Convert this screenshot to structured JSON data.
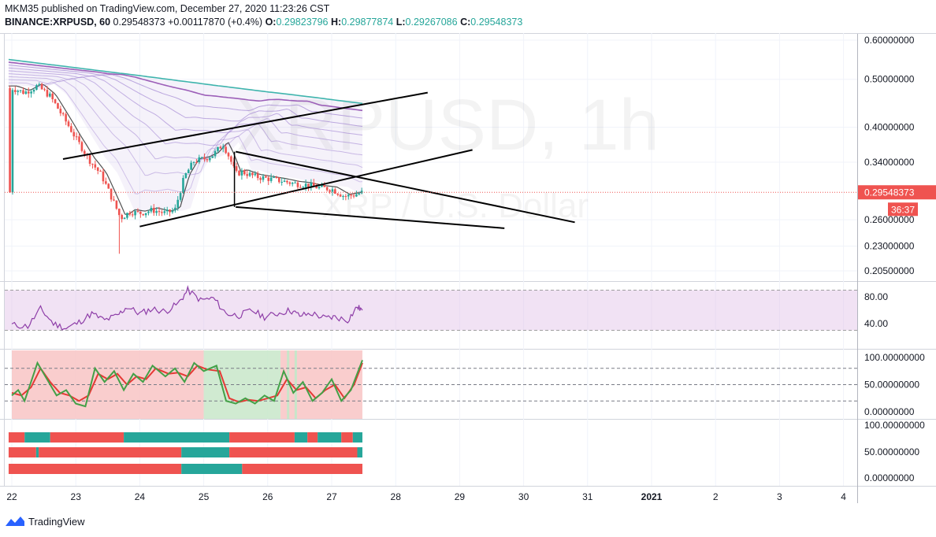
{
  "header": {
    "published": "MKM35 published on TradingView.com, December 27, 2020 11:23:26 CST",
    "symbol": "BINANCE:XRPUSD, 60",
    "last": "0.29548373",
    "change": "+0.00117870 (+0.4%)",
    "o_label": "O:",
    "o": "0.29823796",
    "h_label": "H:",
    "h": "0.29877874",
    "l_label": "L:",
    "l": "0.29267086",
    "c_label": "C:",
    "c": "0.29548373"
  },
  "watermark": {
    "line1": "XRPUSD, 1h",
    "line2": "XRP / U.S. Dollar"
  },
  "footer": {
    "brand": "TradingView"
  },
  "colors": {
    "up": "#26a69a",
    "down": "#ef5350",
    "ma_teal": "#3fb4ad",
    "ma_purple": "#9c5fb8",
    "rsi": "#8e3ea8",
    "stoch_k": "#43a047",
    "stoch_d": "#e53935",
    "trend": "#000000"
  },
  "chart_data": [
    {
      "type": "candlestick",
      "name": "price",
      "x_ticks": [
        "22",
        "23",
        "24",
        "25",
        "26",
        "27",
        "28",
        "29",
        "30",
        "31",
        "2021",
        "2",
        "3",
        "4"
      ],
      "y_ticks": [
        "0.60000000",
        "0.50000000",
        "0.40000000",
        "0.34000000",
        "0.29548373",
        "0.26000000",
        "0.23000000",
        "0.20500000"
      ],
      "y_scale": "log",
      "ylim": [
        0.19,
        0.64
      ],
      "last_price": "0.29548373",
      "countdown": "36:37",
      "close_path": [
        [
          22.0,
          0.48
        ],
        [
          22.2,
          0.47
        ],
        [
          22.4,
          0.485
        ],
        [
          22.6,
          0.462
        ],
        [
          22.8,
          0.42
        ],
        [
          23.0,
          0.38
        ],
        [
          23.2,
          0.345
        ],
        [
          23.4,
          0.32
        ],
        [
          23.55,
          0.29
        ],
        [
          23.7,
          0.262
        ],
        [
          23.85,
          0.27
        ],
        [
          24.0,
          0.268
        ],
        [
          24.2,
          0.272
        ],
        [
          24.4,
          0.268
        ],
        [
          24.55,
          0.272
        ],
        [
          24.7,
          0.318
        ],
        [
          24.85,
          0.342
        ],
        [
          25.0,
          0.345
        ],
        [
          25.15,
          0.352
        ],
        [
          25.3,
          0.37
        ],
        [
          25.4,
          0.348
        ],
        [
          25.5,
          0.322
        ],
        [
          25.6,
          0.325
        ],
        [
          25.8,
          0.318
        ],
        [
          26.0,
          0.315
        ],
        [
          26.2,
          0.312
        ],
        [
          26.4,
          0.308
        ],
        [
          26.6,
          0.306
        ],
        [
          26.8,
          0.302
        ],
        [
          27.0,
          0.3
        ],
        [
          27.2,
          0.29
        ],
        [
          27.35,
          0.292
        ],
        [
          27.48,
          0.2955
        ]
      ],
      "trend_lines": [
        [
          [
            22.8,
            0.345
          ],
          [
            28.5,
            0.47
          ]
        ],
        [
          [
            24.0,
            0.252
          ],
          [
            29.2,
            0.36
          ]
        ],
        [
          [
            25.5,
            0.357
          ],
          [
            30.8,
            0.257
          ]
        ],
        [
          [
            25.5,
            0.276
          ],
          [
            29.7,
            0.25
          ]
        ]
      ]
    },
    {
      "type": "line",
      "name": "rsi",
      "y_ticks": [
        "80.00",
        "40.00"
      ],
      "ylim": [
        20,
        100
      ],
      "band": [
        30,
        90
      ],
      "values": [
        [
          22.0,
          38
        ],
        [
          22.25,
          36
        ],
        [
          22.45,
          62
        ],
        [
          22.65,
          40
        ],
        [
          22.85,
          33
        ],
        [
          23.05,
          42
        ],
        [
          23.25,
          55
        ],
        [
          23.45,
          45
        ],
        [
          23.65,
          52
        ],
        [
          23.8,
          65
        ],
        [
          24.0,
          55
        ],
        [
          24.2,
          62
        ],
        [
          24.4,
          58
        ],
        [
          24.6,
          70
        ],
        [
          24.75,
          90
        ],
        [
          24.95,
          75
        ],
        [
          25.15,
          78
        ],
        [
          25.35,
          55
        ],
        [
          25.55,
          52
        ],
        [
          25.75,
          60
        ],
        [
          25.95,
          50
        ],
        [
          26.15,
          55
        ],
        [
          26.35,
          60
        ],
        [
          26.5,
          52
        ],
        [
          26.7,
          55
        ],
        [
          26.9,
          48
        ],
        [
          27.05,
          50
        ],
        [
          27.25,
          45
        ],
        [
          27.4,
          65
        ],
        [
          27.48,
          60
        ]
      ]
    },
    {
      "type": "line",
      "name": "stoch",
      "y_ticks": [
        "100.00000000",
        "50.00000000",
        "0.00000000"
      ],
      "ylim": [
        -10,
        110
      ],
      "dashed_levels": [
        80,
        50,
        20
      ],
      "k": [
        [
          22.0,
          30
        ],
        [
          22.1,
          40
        ],
        [
          22.2,
          20
        ],
        [
          22.3,
          55
        ],
        [
          22.4,
          90
        ],
        [
          22.55,
          60
        ],
        [
          22.7,
          30
        ],
        [
          22.85,
          40
        ],
        [
          23.0,
          15
        ],
        [
          23.15,
          10
        ],
        [
          23.3,
          80
        ],
        [
          23.45,
          55
        ],
        [
          23.6,
          75
        ],
        [
          23.75,
          40
        ],
        [
          23.9,
          70
        ],
        [
          24.05,
          55
        ],
        [
          24.2,
          85
        ],
        [
          24.4,
          65
        ],
        [
          24.55,
          80
        ],
        [
          24.7,
          55
        ],
        [
          24.85,
          90
        ],
        [
          25.0,
          75
        ],
        [
          25.2,
          85
        ],
        [
          25.35,
          20
        ],
        [
          25.5,
          15
        ],
        [
          25.65,
          25
        ],
        [
          25.8,
          15
        ],
        [
          25.95,
          30
        ],
        [
          26.1,
          20
        ],
        [
          26.25,
          75
        ],
        [
          26.4,
          35
        ],
        [
          26.55,
          55
        ],
        [
          26.7,
          20
        ],
        [
          26.85,
          35
        ],
        [
          27.0,
          60
        ],
        [
          27.15,
          20
        ],
        [
          27.3,
          40
        ],
        [
          27.48,
          95
        ]
      ],
      "d": [
        [
          22.0,
          35
        ],
        [
          22.15,
          30
        ],
        [
          22.3,
          45
        ],
        [
          22.45,
          80
        ],
        [
          22.6,
          55
        ],
        [
          22.75,
          35
        ],
        [
          22.9,
          30
        ],
        [
          23.05,
          20
        ],
        [
          23.2,
          30
        ],
        [
          23.35,
          70
        ],
        [
          23.5,
          60
        ],
        [
          23.65,
          70
        ],
        [
          23.8,
          50
        ],
        [
          23.95,
          65
        ],
        [
          24.1,
          60
        ],
        [
          24.25,
          80
        ],
        [
          24.45,
          70
        ],
        [
          24.6,
          72
        ],
        [
          24.75,
          65
        ],
        [
          24.9,
          85
        ],
        [
          25.05,
          78
        ],
        [
          25.25,
          75
        ],
        [
          25.4,
          25
        ],
        [
          25.55,
          18
        ],
        [
          25.7,
          22
        ],
        [
          25.85,
          20
        ],
        [
          26.0,
          25
        ],
        [
          26.15,
          30
        ],
        [
          26.3,
          60
        ],
        [
          26.45,
          40
        ],
        [
          26.6,
          45
        ],
        [
          26.75,
          25
        ],
        [
          26.9,
          40
        ],
        [
          27.05,
          50
        ],
        [
          27.2,
          25
        ],
        [
          27.35,
          50
        ],
        [
          27.48,
          90
        ]
      ],
      "bg_segments": [
        {
          "from": 22.0,
          "to": 25.0,
          "color": "red"
        },
        {
          "from": 25.0,
          "to": 26.2,
          "color": "green"
        },
        {
          "from": 26.2,
          "to": 26.45,
          "color": "red"
        },
        {
          "from": 26.45,
          "to": 27.48,
          "color": "red"
        }
      ]
    },
    {
      "type": "heatmap",
      "name": "trend_bars",
      "y_ticks": [
        "100.00000000",
        "50.00000000",
        "0.00000000"
      ],
      "rows": [
        [
          {
            "from": 21.95,
            "to": 22.2,
            "color": "red"
          },
          {
            "from": 22.2,
            "to": 22.6,
            "color": "green"
          },
          {
            "from": 22.6,
            "to": 23.75,
            "color": "red"
          },
          {
            "from": 23.75,
            "to": 25.4,
            "color": "green"
          },
          {
            "from": 25.4,
            "to": 26.42,
            "color": "red"
          },
          {
            "from": 26.42,
            "to": 26.62,
            "color": "green"
          },
          {
            "from": 26.62,
            "to": 26.78,
            "color": "red"
          },
          {
            "from": 26.78,
            "to": 27.15,
            "color": "green"
          },
          {
            "from": 27.15,
            "to": 27.33,
            "color": "red"
          },
          {
            "from": 27.33,
            "to": 27.48,
            "color": "green"
          }
        ],
        [
          {
            "from": 21.95,
            "to": 22.38,
            "color": "red"
          },
          {
            "from": 22.38,
            "to": 22.42,
            "color": "green"
          },
          {
            "from": 22.42,
            "to": 24.65,
            "color": "red"
          },
          {
            "from": 24.65,
            "to": 25.4,
            "color": "green"
          },
          {
            "from": 25.4,
            "to": 27.4,
            "color": "red"
          },
          {
            "from": 27.4,
            "to": 27.48,
            "color": "green"
          }
        ],
        [
          {
            "from": 21.95,
            "to": 24.65,
            "color": "red"
          },
          {
            "from": 24.65,
            "to": 25.6,
            "color": "green"
          },
          {
            "from": 25.6,
            "to": 27.48,
            "color": "red"
          }
        ]
      ]
    }
  ]
}
